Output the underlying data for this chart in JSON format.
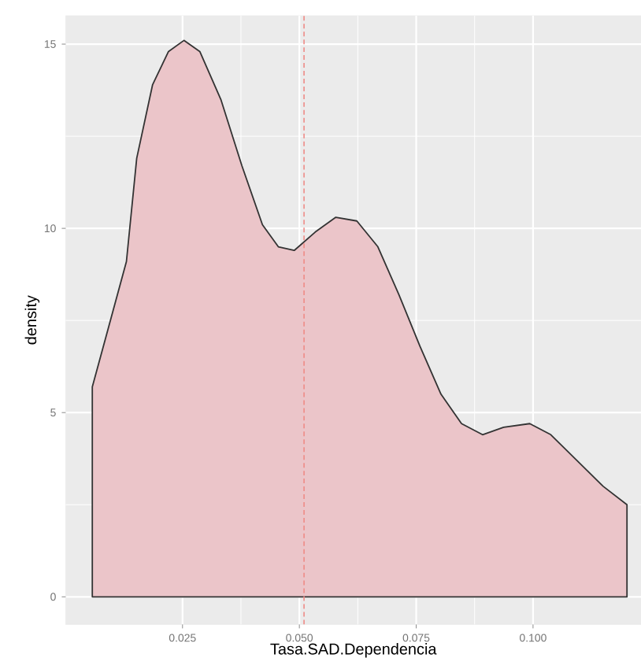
{
  "chart_data": {
    "type": "area",
    "xlabel": "Tasa.SAD.Dependencia",
    "ylabel": "density",
    "x": [
      0.0057,
      0.0085,
      0.013,
      0.0152,
      0.0186,
      0.022,
      0.0253,
      0.0287,
      0.0332,
      0.0377,
      0.0421,
      0.0455,
      0.0489,
      0.0534,
      0.0578,
      0.0623,
      0.0668,
      0.0713,
      0.0758,
      0.0803,
      0.0847,
      0.0892,
      0.0937,
      0.0993,
      0.1038,
      0.1094,
      0.115,
      0.1201
    ],
    "values": [
      5.7,
      7.0,
      9.1,
      11.9,
      13.9,
      14.8,
      15.1,
      14.8,
      13.5,
      11.7,
      10.1,
      9.5,
      9.4,
      9.9,
      10.3,
      10.2,
      9.5,
      8.2,
      6.8,
      5.5,
      4.7,
      4.4,
      4.6,
      4.7,
      4.4,
      3.7,
      3.0,
      2.5
    ],
    "color": "#ebc5c9",
    "ref_lines": [
      {
        "axis": "x",
        "value": 0.051,
        "color": "#ee8a86",
        "line_style": "dashed"
      }
    ],
    "xlim": [
      0.0,
      0.1231
    ],
    "ylim": [
      -0.75,
      15.77
    ],
    "xticks": [
      0.025,
      {
        "value": 0.05,
        "label": "0.050"
      },
      0.075,
      {
        "value": 0.1,
        "label": "0.100"
      }
    ],
    "yticks": [
      0,
      5,
      10,
      15
    ],
    "grid": true
  }
}
